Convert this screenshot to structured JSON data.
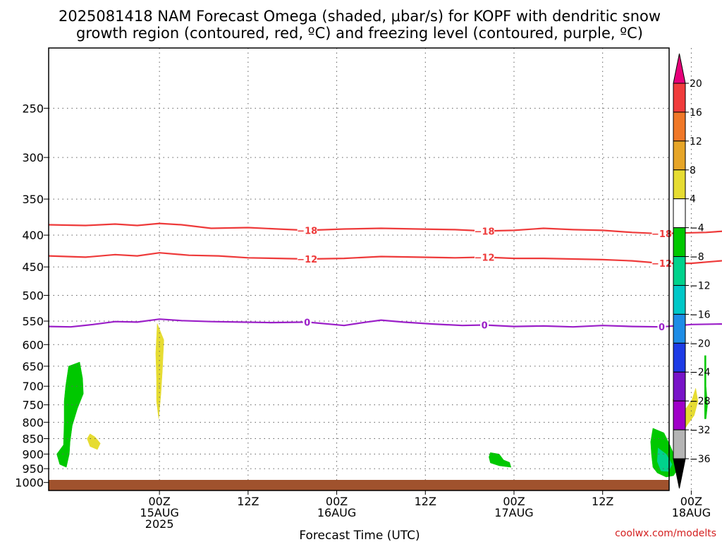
{
  "title_line1": "2025081418 NAM Forecast Omega (shaded, μbar/s) for KOPF with dendritic snow",
  "title_line2": "growth region (contoured, red, ºC) and freezing level (contoured, purple, ºC)",
  "credit": "coolwx.com/modelts",
  "chart_data": {
    "type": "contour",
    "xlabel": "Forecast Time (UTC)",
    "x_range_hours": [
      -15,
      69
    ],
    "y_range_hPa": [
      1030,
      200
    ],
    "x_ticks": [
      {
        "hour": 0,
        "l1": "00Z",
        "l2": "15AUG",
        "l3": "2025"
      },
      {
        "hour": 12,
        "l1": "12Z",
        "l2": "",
        "l3": ""
      },
      {
        "hour": 24,
        "l1": "00Z",
        "l2": "16AUG",
        "l3": ""
      },
      {
        "hour": 36,
        "l1": "12Z",
        "l2": "",
        "l3": ""
      },
      {
        "hour": 48,
        "l1": "00Z",
        "l2": "17AUG",
        "l3": ""
      },
      {
        "hour": 60,
        "l1": "12Z",
        "l2": "",
        "l3": ""
      },
      {
        "hour": 72,
        "l1": "00Z",
        "l2": "18AUG",
        "l3": ""
      }
    ],
    "y_ticks": [
      250,
      300,
      350,
      400,
      450,
      500,
      550,
      600,
      650,
      700,
      750,
      800,
      850,
      900,
      950,
      1000
    ],
    "grid": true,
    "colorbar": {
      "labels": [
        "20",
        "16",
        "12",
        "8",
        "4",
        "−4",
        "−8",
        "−12",
        "−16",
        "−20",
        "−24",
        "−28",
        "−32",
        "−36"
      ],
      "colors": [
        "#f03c3c",
        "#f07828",
        "#e6a528",
        "#e6dc32",
        "#ffffff",
        "#00c800",
        "#00d28c",
        "#00c8c8",
        "#1e8ce6",
        "#1e3ce6",
        "#7814c8",
        "#a000c8",
        "#b4b4b4"
      ],
      "top_arrow": "#e6007a",
      "bottom_arrow": "#000000"
    },
    "contours": [
      {
        "value": -18,
        "color": "#ee3a3a",
        "labels_at_hours": [
          20,
          44,
          68
        ],
        "points": [
          [
            -15,
            385
          ],
          [
            -10,
            386
          ],
          [
            -6,
            384
          ],
          [
            -3,
            386
          ],
          [
            0,
            383
          ],
          [
            3,
            385
          ],
          [
            7,
            390
          ],
          [
            12,
            389
          ],
          [
            16,
            391
          ],
          [
            20,
            393
          ],
          [
            25,
            391
          ],
          [
            30,
            390
          ],
          [
            35,
            391
          ],
          [
            40,
            392
          ],
          [
            44,
            394
          ],
          [
            48,
            393
          ],
          [
            52,
            390
          ],
          [
            56,
            392
          ],
          [
            60,
            393
          ],
          [
            64,
            396
          ],
          [
            68,
            398
          ],
          [
            70,
            397
          ],
          [
            74,
            396
          ],
          [
            78,
            393
          ],
          [
            80,
            395
          ],
          [
            84,
            394
          ]
        ]
      },
      {
        "value": -12,
        "color": "#ee3a3a",
        "labels_at_hours": [
          20,
          44,
          68
        ],
        "points": [
          [
            -15,
            432
          ],
          [
            -10,
            434
          ],
          [
            -6,
            430
          ],
          [
            -3,
            432
          ],
          [
            0,
            427
          ],
          [
            4,
            431
          ],
          [
            8,
            432
          ],
          [
            12,
            435
          ],
          [
            16,
            436
          ],
          [
            20,
            437
          ],
          [
            25,
            436
          ],
          [
            30,
            433
          ],
          [
            35,
            434
          ],
          [
            40,
            435
          ],
          [
            44,
            434
          ],
          [
            48,
            436
          ],
          [
            52,
            436
          ],
          [
            56,
            437
          ],
          [
            60,
            438
          ],
          [
            64,
            440
          ],
          [
            68,
            444
          ],
          [
            72,
            444
          ],
          [
            76,
            440
          ],
          [
            80,
            436
          ],
          [
            84,
            442
          ]
        ]
      },
      {
        "value": 0,
        "color": "#9b1fc8",
        "labels_at_hours": [
          20,
          44,
          68
        ],
        "points": [
          [
            -15,
            561
          ],
          [
            -12,
            562
          ],
          [
            -9,
            557
          ],
          [
            -6,
            551
          ],
          [
            -3,
            552
          ],
          [
            0,
            546
          ],
          [
            3,
            549
          ],
          [
            7,
            551
          ],
          [
            11,
            552
          ],
          [
            15,
            553
          ],
          [
            20,
            552
          ],
          [
            25,
            559
          ],
          [
            28,
            552
          ],
          [
            30,
            548
          ],
          [
            33,
            552
          ],
          [
            37,
            556
          ],
          [
            41,
            559
          ],
          [
            44,
            558
          ],
          [
            48,
            561
          ],
          [
            52,
            560
          ],
          [
            56,
            562
          ],
          [
            60,
            559
          ],
          [
            64,
            561
          ],
          [
            68,
            562
          ],
          [
            72,
            557
          ],
          [
            76,
            556
          ],
          [
            80,
            559
          ],
          [
            84,
            559
          ]
        ]
      }
    ],
    "omega_regions": [
      {
        "level": -6,
        "color": "#00c800",
        "points": [
          [
            -12.3,
            650
          ],
          [
            -10.8,
            640
          ],
          [
            -10.4,
            680
          ],
          [
            -10.3,
            720
          ],
          [
            -11.1,
            760
          ],
          [
            -11.8,
            810
          ],
          [
            -12.1,
            860
          ],
          [
            -12.2,
            900
          ],
          [
            -12.6,
            945
          ],
          [
            -13.5,
            935
          ],
          [
            -13.9,
            900
          ],
          [
            -13.0,
            870
          ],
          [
            -12.9,
            800
          ],
          [
            -12.9,
            740
          ],
          [
            -12.7,
            700
          ]
        ]
      },
      {
        "level": 6,
        "color": "#e6dc32",
        "points": [
          [
            -8.7,
            845
          ],
          [
            -8.0,
            865
          ],
          [
            -8.4,
            885
          ],
          [
            -9.4,
            875
          ],
          [
            -9.8,
            850
          ],
          [
            -9.4,
            835
          ]
        ]
      },
      {
        "level": 6,
        "color": "#e6dc32",
        "points": [
          [
            -0.3,
            555
          ],
          [
            0.6,
            590
          ],
          [
            0.4,
            660
          ],
          [
            0.2,
            720
          ],
          [
            -0.1,
            790
          ],
          [
            -0.4,
            740
          ],
          [
            -0.4,
            680
          ],
          [
            -0.5,
            620
          ]
        ]
      },
      {
        "level": -6,
        "color": "#00c800",
        "points": [
          [
            44.8,
            895
          ],
          [
            46.0,
            900
          ],
          [
            46.6,
            920
          ],
          [
            47.4,
            928
          ],
          [
            47.6,
            945
          ],
          [
            46.0,
            940
          ],
          [
            44.8,
            930
          ],
          [
            44.6,
            910
          ]
        ]
      },
      {
        "level": -6,
        "color": "#00c800",
        "points": [
          [
            66.8,
            818
          ],
          [
            68.3,
            832
          ],
          [
            69.1,
            870
          ],
          [
            69.9,
            915
          ],
          [
            70.2,
            950
          ],
          [
            69.6,
            975
          ],
          [
            68.6,
            980
          ],
          [
            67.4,
            965
          ],
          [
            66.8,
            945
          ],
          [
            66.6,
            900
          ],
          [
            66.5,
            860
          ]
        ]
      },
      {
        "level": -10,
        "color": "#00d28c",
        "points": [
          [
            67.5,
            880
          ],
          [
            68.6,
            900
          ],
          [
            69.4,
            935
          ],
          [
            68.9,
            960
          ],
          [
            67.9,
            958
          ],
          [
            67.4,
            925
          ]
        ]
      },
      {
        "level": 6,
        "color": "#e6dc32",
        "points": [
          [
            69.5,
            735
          ],
          [
            70.5,
            735
          ],
          [
            71.3,
            760
          ],
          [
            72.1,
            735
          ],
          [
            72.6,
            705
          ],
          [
            72.9,
            740
          ],
          [
            72.4,
            780
          ],
          [
            71.4,
            810
          ],
          [
            70.5,
            845
          ],
          [
            69.9,
            820
          ]
        ]
      },
      {
        "level": -6,
        "color": "#00c800",
        "points": [
          [
            73.8,
            625
          ],
          [
            74.0,
            625
          ],
          [
            74.0,
            700
          ],
          [
            74.2,
            750
          ],
          [
            74.0,
            790
          ],
          [
            73.8,
            790
          ],
          [
            73.8,
            700
          ]
        ]
      }
    ]
  }
}
